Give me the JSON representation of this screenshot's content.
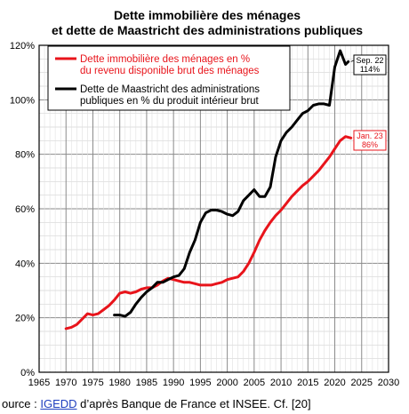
{
  "chart_data": {
    "type": "line",
    "title": [
      "Dette immobilière des ménages",
      "et dette de Maastricht des administrations  publiques"
    ],
    "xlim": [
      1965,
      2030
    ],
    "ylim": [
      0,
      120
    ],
    "x_ticks": [
      "1965",
      "1970",
      "1975",
      "1980",
      "1985",
      "1990",
      "1995",
      "2000",
      "2005",
      "2010",
      "2015",
      "2020",
      "2025",
      "2030"
    ],
    "y_ticks": [
      "0%",
      "20%",
      "40%",
      "60%",
      "80%",
      "100%",
      "120%"
    ],
    "grid": true,
    "legend_position": "top-left",
    "series": [
      {
        "name": "Dette immobilière des ménages en % du revenu disponible brut des ménages",
        "legend_lines": [
          "Dette immobilière des ménages en %",
          "du revenu disponible brut des ménages"
        ],
        "color": "#e8141b",
        "points": [
          [
            1970,
            16
          ],
          [
            1971,
            16.5
          ],
          [
            1972,
            17.5
          ],
          [
            1973,
            19.5
          ],
          [
            1974,
            21.5
          ],
          [
            1975,
            21
          ],
          [
            1976,
            21.5
          ],
          [
            1977,
            23
          ],
          [
            1978,
            24.5
          ],
          [
            1979,
            26.5
          ],
          [
            1980,
            29
          ],
          [
            1981,
            29.5
          ],
          [
            1982,
            29
          ],
          [
            1983,
            29.5
          ],
          [
            1984,
            30.5
          ],
          [
            1985,
            31
          ],
          [
            1986,
            31
          ],
          [
            1987,
            32
          ],
          [
            1988,
            33.5
          ],
          [
            1989,
            34.5
          ],
          [
            1990,
            34
          ],
          [
            1991,
            33.5
          ],
          [
            1992,
            33
          ],
          [
            1993,
            33
          ],
          [
            1994,
            32.5
          ],
          [
            1995,
            32
          ],
          [
            1996,
            32
          ],
          [
            1997,
            32
          ],
          [
            1998,
            32.5
          ],
          [
            1999,
            33
          ],
          [
            2000,
            34
          ],
          [
            2001,
            34.5
          ],
          [
            2002,
            35
          ],
          [
            2003,
            37
          ],
          [
            2004,
            40
          ],
          [
            2005,
            44
          ],
          [
            2006,
            48.5
          ],
          [
            2007,
            52
          ],
          [
            2008,
            55
          ],
          [
            2009,
            57.5
          ],
          [
            2010,
            59.5
          ],
          [
            2011,
            62
          ],
          [
            2012,
            64.5
          ],
          [
            2013,
            66.5
          ],
          [
            2014,
            68.5
          ],
          [
            2015,
            70
          ],
          [
            2016,
            72
          ],
          [
            2017,
            74
          ],
          [
            2018,
            76.5
          ],
          [
            2019,
            79
          ],
          [
            2020,
            82
          ],
          [
            2021,
            85
          ],
          [
            2022,
            86.5
          ],
          [
            2023,
            86
          ]
        ]
      },
      {
        "name": "Dette de Maastricht des administrations publiques en % du produit intérieur brut",
        "legend_lines": [
          "Dette de Maastricht des administrations",
          "publiques en % du produit intérieur brut"
        ],
        "color": "#000000",
        "points": [
          [
            1979,
            21
          ],
          [
            1980,
            21
          ],
          [
            1981,
            20.5
          ],
          [
            1982,
            22
          ],
          [
            1983,
            25
          ],
          [
            1984,
            27.5
          ],
          [
            1985,
            29.5
          ],
          [
            1986,
            31
          ],
          [
            1987,
            33
          ],
          [
            1988,
            33
          ],
          [
            1989,
            34
          ],
          [
            1990,
            35
          ],
          [
            1991,
            35.5
          ],
          [
            1992,
            38
          ],
          [
            1993,
            44
          ],
          [
            1994,
            48.5
          ],
          [
            1995,
            55
          ],
          [
            1996,
            58.5
          ],
          [
            1997,
            59.5
          ],
          [
            1998,
            59.5
          ],
          [
            1999,
            59
          ],
          [
            2000,
            58
          ],
          [
            2001,
            57.5
          ],
          [
            2002,
            59
          ],
          [
            2003,
            63
          ],
          [
            2004,
            65
          ],
          [
            2005,
            67
          ],
          [
            2006,
            64.5
          ],
          [
            2007,
            64.5
          ],
          [
            2008,
            68
          ],
          [
            2009,
            79
          ],
          [
            2010,
            85
          ],
          [
            2011,
            88
          ],
          [
            2012,
            90
          ],
          [
            2013,
            92.5
          ],
          [
            2014,
            95
          ],
          [
            2015,
            96
          ],
          [
            2016,
            98
          ],
          [
            2017,
            98.5
          ],
          [
            2018,
            98.5
          ],
          [
            2019,
            98
          ],
          [
            2020,
            112
          ],
          [
            2021,
            118
          ],
          [
            2022,
            113
          ],
          [
            2022.5,
            114
          ]
        ]
      }
    ],
    "annotations": [
      {
        "series": 1,
        "label": [
          "Sep. 22",
          "114%"
        ],
        "x": 2022.5,
        "y": 114
      },
      {
        "series": 0,
        "label": [
          "Jan. 23",
          "86%"
        ],
        "x": 2023,
        "y": 86
      }
    ]
  },
  "source": {
    "prefix": "ource : ",
    "link": "IGEDD",
    "suffix": " d’après Banque de France et INSEE. Cf. [20]"
  }
}
